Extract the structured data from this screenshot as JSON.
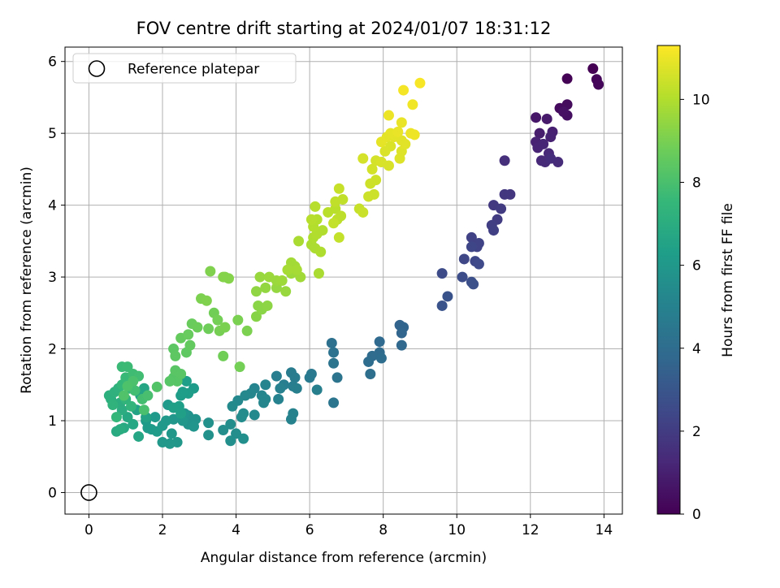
{
  "chart_data": {
    "type": "scatter",
    "title": "FOV centre drift starting at 2024/01/07 18:31:12",
    "xlabel": "Angular distance from reference (arcmin)",
    "ylabel": "Rotation from reference (arcmin)",
    "xlim": [
      -0.65,
      14.5
    ],
    "ylim": [
      -0.3,
      6.2
    ],
    "xticks": [
      0,
      2,
      4,
      6,
      8,
      10,
      12,
      14
    ],
    "yticks": [
      0,
      1,
      2,
      3,
      4,
      5,
      6
    ],
    "grid": true,
    "legend": {
      "position": "top-left",
      "entries": [
        "Reference platepar"
      ]
    },
    "reference_point": {
      "x": 0,
      "y": 0,
      "marker": "open-circle",
      "label": "Reference platepar"
    },
    "colorbar": {
      "label": "Hours from first FF file",
      "colormap": "viridis",
      "range": [
        0,
        11.3
      ],
      "ticks": [
        0,
        2,
        4,
        6,
        8,
        10
      ]
    },
    "color_field": "hours",
    "points": [
      {
        "x": 13.7,
        "y": 5.9,
        "hours": 0.0
      },
      {
        "x": 13.0,
        "y": 5.76,
        "hours": 0.05
      },
      {
        "x": 13.8,
        "y": 5.75,
        "hours": 0.1
      },
      {
        "x": 13.85,
        "y": 5.68,
        "hours": 0.15
      },
      {
        "x": 12.8,
        "y": 5.35,
        "hours": 0.3
      },
      {
        "x": 13.0,
        "y": 5.4,
        "hours": 0.35
      },
      {
        "x": 13.0,
        "y": 5.25,
        "hours": 0.45
      },
      {
        "x": 12.9,
        "y": 5.3,
        "hours": 0.5
      },
      {
        "x": 12.15,
        "y": 5.22,
        "hours": 0.7
      },
      {
        "x": 12.45,
        "y": 5.2,
        "hours": 0.8
      },
      {
        "x": 12.25,
        "y": 5.0,
        "hours": 0.9
      },
      {
        "x": 12.6,
        "y": 5.02,
        "hours": 1.0
      },
      {
        "x": 12.55,
        "y": 4.95,
        "hours": 1.05
      },
      {
        "x": 12.15,
        "y": 4.88,
        "hours": 1.1
      },
      {
        "x": 12.2,
        "y": 4.8,
        "hours": 1.15
      },
      {
        "x": 12.35,
        "y": 4.85,
        "hours": 1.2
      },
      {
        "x": 12.5,
        "y": 4.72,
        "hours": 1.25
      },
      {
        "x": 12.3,
        "y": 4.62,
        "hours": 1.3
      },
      {
        "x": 12.4,
        "y": 4.6,
        "hours": 1.35
      },
      {
        "x": 12.75,
        "y": 4.6,
        "hours": 1.4
      },
      {
        "x": 12.55,
        "y": 4.65,
        "hours": 1.45
      },
      {
        "x": 11.3,
        "y": 4.62,
        "hours": 1.55
      },
      {
        "x": 11.45,
        "y": 4.15,
        "hours": 1.8
      },
      {
        "x": 11.3,
        "y": 4.15,
        "hours": 1.85
      },
      {
        "x": 11.0,
        "y": 4.0,
        "hours": 1.9
      },
      {
        "x": 11.2,
        "y": 3.95,
        "hours": 1.95
      },
      {
        "x": 11.1,
        "y": 3.8,
        "hours": 2.0
      },
      {
        "x": 10.95,
        "y": 3.72,
        "hours": 2.05
      },
      {
        "x": 11.0,
        "y": 3.65,
        "hours": 2.1
      },
      {
        "x": 10.4,
        "y": 3.55,
        "hours": 2.2
      },
      {
        "x": 10.6,
        "y": 3.47,
        "hours": 2.25
      },
      {
        "x": 10.55,
        "y": 3.42,
        "hours": 2.3
      },
      {
        "x": 10.4,
        "y": 3.42,
        "hours": 2.35
      },
      {
        "x": 10.2,
        "y": 3.25,
        "hours": 2.4
      },
      {
        "x": 10.5,
        "y": 3.22,
        "hours": 2.45
      },
      {
        "x": 10.6,
        "y": 3.18,
        "hours": 2.5
      },
      {
        "x": 9.6,
        "y": 3.05,
        "hours": 2.6
      },
      {
        "x": 10.15,
        "y": 3.0,
        "hours": 2.65
      },
      {
        "x": 10.4,
        "y": 2.93,
        "hours": 2.7
      },
      {
        "x": 10.45,
        "y": 2.9,
        "hours": 2.75
      },
      {
        "x": 9.75,
        "y": 2.73,
        "hours": 2.85
      },
      {
        "x": 9.6,
        "y": 2.6,
        "hours": 2.9
      },
      {
        "x": 8.45,
        "y": 2.33,
        "hours": 3.6
      },
      {
        "x": 8.55,
        "y": 2.3,
        "hours": 3.65
      },
      {
        "x": 8.5,
        "y": 2.22,
        "hours": 3.7
      },
      {
        "x": 8.5,
        "y": 2.05,
        "hours": 3.75
      },
      {
        "x": 7.9,
        "y": 2.1,
        "hours": 3.85
      },
      {
        "x": 7.9,
        "y": 1.95,
        "hours": 3.9
      },
      {
        "x": 7.7,
        "y": 1.9,
        "hours": 3.95
      },
      {
        "x": 7.6,
        "y": 1.82,
        "hours": 4.0
      },
      {
        "x": 7.95,
        "y": 1.87,
        "hours": 4.0
      },
      {
        "x": 7.65,
        "y": 1.65,
        "hours": 4.1
      },
      {
        "x": 6.6,
        "y": 2.08,
        "hours": 4.2
      },
      {
        "x": 6.65,
        "y": 1.95,
        "hours": 4.25
      },
      {
        "x": 6.65,
        "y": 1.8,
        "hours": 4.3
      },
      {
        "x": 6.75,
        "y": 1.6,
        "hours": 4.35
      },
      {
        "x": 6.65,
        "y": 1.25,
        "hours": 4.4
      },
      {
        "x": 6.05,
        "y": 1.65,
        "hours": 4.6
      },
      {
        "x": 6.0,
        "y": 1.6,
        "hours": 4.65
      },
      {
        "x": 5.5,
        "y": 1.67,
        "hours": 4.7
      },
      {
        "x": 5.6,
        "y": 1.6,
        "hours": 4.75
      },
      {
        "x": 5.3,
        "y": 1.5,
        "hours": 4.8
      },
      {
        "x": 5.1,
        "y": 1.62,
        "hours": 4.85
      },
      {
        "x": 5.55,
        "y": 1.48,
        "hours": 4.85
      },
      {
        "x": 5.65,
        "y": 1.45,
        "hours": 4.9
      },
      {
        "x": 6.2,
        "y": 1.43,
        "hours": 4.9
      },
      {
        "x": 5.2,
        "y": 1.45,
        "hours": 4.95
      },
      {
        "x": 5.15,
        "y": 1.3,
        "hours": 5.0
      },
      {
        "x": 5.55,
        "y": 1.1,
        "hours": 5.05
      },
      {
        "x": 5.5,
        "y": 1.02,
        "hours": 5.05
      },
      {
        "x": 4.8,
        "y": 1.5,
        "hours": 5.1
      },
      {
        "x": 4.5,
        "y": 1.45,
        "hours": 5.1
      },
      {
        "x": 4.7,
        "y": 1.35,
        "hours": 5.15
      },
      {
        "x": 4.4,
        "y": 1.38,
        "hours": 5.2
      },
      {
        "x": 4.8,
        "y": 1.3,
        "hours": 5.2
      },
      {
        "x": 4.75,
        "y": 1.25,
        "hours": 5.25
      },
      {
        "x": 4.25,
        "y": 1.35,
        "hours": 5.3
      },
      {
        "x": 4.05,
        "y": 1.28,
        "hours": 5.3
      },
      {
        "x": 4.5,
        "y": 1.08,
        "hours": 5.35
      },
      {
        "x": 3.9,
        "y": 1.2,
        "hours": 5.4
      },
      {
        "x": 4.2,
        "y": 1.1,
        "hours": 5.45
      },
      {
        "x": 4.15,
        "y": 1.05,
        "hours": 5.45
      },
      {
        "x": 3.85,
        "y": 0.95,
        "hours": 5.5
      },
      {
        "x": 4.0,
        "y": 0.82,
        "hours": 5.55
      },
      {
        "x": 3.65,
        "y": 0.87,
        "hours": 5.55
      },
      {
        "x": 3.85,
        "y": 0.72,
        "hours": 5.6
      },
      {
        "x": 4.2,
        "y": 0.75,
        "hours": 5.6
      },
      {
        "x": 3.25,
        "y": 0.97,
        "hours": 5.65
      },
      {
        "x": 3.25,
        "y": 0.8,
        "hours": 5.7
      },
      {
        "x": 2.7,
        "y": 1.07,
        "hours": 5.75
      },
      {
        "x": 2.9,
        "y": 1.02,
        "hours": 5.8
      },
      {
        "x": 2.7,
        "y": 0.95,
        "hours": 5.8
      },
      {
        "x": 2.85,
        "y": 0.92,
        "hours": 5.85
      },
      {
        "x": 2.6,
        "y": 1.1,
        "hours": 5.85
      },
      {
        "x": 2.55,
        "y": 1.0,
        "hours": 5.9
      },
      {
        "x": 2.3,
        "y": 1.02,
        "hours": 5.9
      },
      {
        "x": 2.25,
        "y": 0.82,
        "hours": 5.95
      },
      {
        "x": 2.4,
        "y": 0.7,
        "hours": 5.95
      },
      {
        "x": 2.2,
        "y": 0.68,
        "hours": 6.0
      },
      {
        "x": 2.0,
        "y": 0.7,
        "hours": 6.0
      },
      {
        "x": 2.0,
        "y": 0.93,
        "hours": 6.05
      },
      {
        "x": 2.1,
        "y": 1.0,
        "hours": 6.05
      },
      {
        "x": 2.15,
        "y": 1.22,
        "hours": 6.1
      },
      {
        "x": 1.8,
        "y": 1.05,
        "hours": 6.1
      },
      {
        "x": 1.7,
        "y": 0.88,
        "hours": 6.15
      },
      {
        "x": 1.85,
        "y": 0.85,
        "hours": 6.15
      },
      {
        "x": 1.6,
        "y": 0.9,
        "hours": 6.2
      },
      {
        "x": 1.55,
        "y": 1.0,
        "hours": 6.2
      },
      {
        "x": 2.85,
        "y": 1.45,
        "hours": 6.2
      },
      {
        "x": 2.7,
        "y": 1.38,
        "hours": 6.25
      },
      {
        "x": 2.5,
        "y": 1.35,
        "hours": 6.25
      },
      {
        "x": 2.55,
        "y": 1.4,
        "hours": 6.3
      },
      {
        "x": 2.65,
        "y": 1.55,
        "hours": 6.35
      },
      {
        "x": 2.45,
        "y": 1.2,
        "hours": 6.35
      },
      {
        "x": 2.3,
        "y": 1.18,
        "hours": 6.4
      },
      {
        "x": 2.5,
        "y": 1.1,
        "hours": 6.4
      },
      {
        "x": 1.55,
        "y": 1.05,
        "hours": 6.5
      },
      {
        "x": 1.3,
        "y": 1.15,
        "hours": 6.55
      },
      {
        "x": 1.4,
        "y": 1.35,
        "hours": 6.6
      },
      {
        "x": 1.5,
        "y": 1.45,
        "hours": 6.65
      },
      {
        "x": 1.35,
        "y": 0.78,
        "hours": 6.7
      },
      {
        "x": 1.2,
        "y": 0.95,
        "hours": 6.75
      },
      {
        "x": 1.05,
        "y": 1.05,
        "hours": 6.8
      },
      {
        "x": 0.95,
        "y": 0.9,
        "hours": 6.85
      },
      {
        "x": 0.75,
        "y": 0.85,
        "hours": 6.9
      },
      {
        "x": 0.85,
        "y": 0.88,
        "hours": 6.95
      },
      {
        "x": 0.9,
        "y": 1.15,
        "hours": 7.0
      },
      {
        "x": 0.85,
        "y": 1.25,
        "hours": 7.05
      },
      {
        "x": 0.6,
        "y": 1.3,
        "hours": 7.1
      },
      {
        "x": 0.55,
        "y": 1.35,
        "hours": 7.15
      },
      {
        "x": 0.7,
        "y": 1.4,
        "hours": 7.2
      },
      {
        "x": 0.8,
        "y": 1.45,
        "hours": 7.25
      },
      {
        "x": 0.65,
        "y": 1.22,
        "hours": 7.3
      },
      {
        "x": 1.0,
        "y": 1.3,
        "hours": 7.35
      },
      {
        "x": 1.15,
        "y": 1.2,
        "hours": 7.4
      },
      {
        "x": 0.75,
        "y": 1.05,
        "hours": 7.45
      },
      {
        "x": 0.9,
        "y": 1.5,
        "hours": 7.5
      },
      {
        "x": 1.1,
        "y": 1.45,
        "hours": 7.55
      },
      {
        "x": 1.0,
        "y": 1.6,
        "hours": 7.6
      },
      {
        "x": 0.9,
        "y": 1.75,
        "hours": 7.65
      },
      {
        "x": 1.05,
        "y": 1.75,
        "hours": 7.7
      },
      {
        "x": 1.2,
        "y": 1.65,
        "hours": 7.75
      },
      {
        "x": 1.35,
        "y": 1.62,
        "hours": 7.8
      },
      {
        "x": 1.25,
        "y": 1.42,
        "hours": 7.85
      },
      {
        "x": 1.45,
        "y": 1.3,
        "hours": 7.9
      },
      {
        "x": 1.6,
        "y": 1.35,
        "hours": 7.95
      },
      {
        "x": 1.5,
        "y": 1.15,
        "hours": 8.0
      },
      {
        "x": 1.2,
        "y": 1.55,
        "hours": 8.05
      },
      {
        "x": 1.05,
        "y": 1.48,
        "hours": 8.1
      },
      {
        "x": 0.95,
        "y": 1.35,
        "hours": 8.15
      },
      {
        "x": 1.85,
        "y": 1.47,
        "hours": 8.2
      },
      {
        "x": 2.3,
        "y": 1.6,
        "hours": 8.25
      },
      {
        "x": 2.4,
        "y": 1.55,
        "hours": 8.3
      },
      {
        "x": 2.2,
        "y": 1.55,
        "hours": 8.3
      },
      {
        "x": 2.35,
        "y": 1.7,
        "hours": 8.35
      },
      {
        "x": 2.5,
        "y": 1.65,
        "hours": 8.35
      },
      {
        "x": 2.3,
        "y": 2.0,
        "hours": 8.4
      },
      {
        "x": 2.35,
        "y": 1.9,
        "hours": 8.45
      },
      {
        "x": 2.65,
        "y": 1.95,
        "hours": 8.5
      },
      {
        "x": 2.75,
        "y": 2.05,
        "hours": 8.55
      },
      {
        "x": 2.5,
        "y": 2.15,
        "hours": 8.6
      },
      {
        "x": 2.7,
        "y": 2.2,
        "hours": 8.65
      },
      {
        "x": 2.8,
        "y": 2.35,
        "hours": 8.7
      },
      {
        "x": 2.95,
        "y": 2.3,
        "hours": 8.75
      },
      {
        "x": 3.25,
        "y": 2.28,
        "hours": 8.8
      },
      {
        "x": 3.4,
        "y": 2.5,
        "hours": 8.85
      },
      {
        "x": 3.5,
        "y": 2.4,
        "hours": 8.9
      },
      {
        "x": 3.55,
        "y": 2.25,
        "hours": 8.95
      },
      {
        "x": 3.7,
        "y": 2.3,
        "hours": 9.0
      },
      {
        "x": 4.05,
        "y": 2.4,
        "hours": 9.0
      },
      {
        "x": 4.3,
        "y": 2.25,
        "hours": 9.05
      },
      {
        "x": 4.1,
        "y": 1.75,
        "hours": 8.9
      },
      {
        "x": 3.65,
        "y": 1.9,
        "hours": 8.85
      },
      {
        "x": 3.05,
        "y": 2.7,
        "hours": 9.05
      },
      {
        "x": 3.2,
        "y": 2.67,
        "hours": 9.1
      },
      {
        "x": 3.3,
        "y": 3.08,
        "hours": 9.1
      },
      {
        "x": 3.7,
        "y": 3.0,
        "hours": 9.15
      },
      {
        "x": 3.8,
        "y": 2.98,
        "hours": 9.2
      },
      {
        "x": 3.65,
        "y": 3.0,
        "hours": 9.2
      },
      {
        "x": 4.55,
        "y": 2.45,
        "hours": 9.25
      },
      {
        "x": 4.6,
        "y": 2.6,
        "hours": 9.3
      },
      {
        "x": 4.7,
        "y": 2.55,
        "hours": 9.3
      },
      {
        "x": 4.85,
        "y": 2.6,
        "hours": 9.35
      },
      {
        "x": 4.55,
        "y": 2.8,
        "hours": 9.4
      },
      {
        "x": 4.8,
        "y": 2.85,
        "hours": 9.45
      },
      {
        "x": 5.1,
        "y": 2.85,
        "hours": 9.5
      },
      {
        "x": 5.35,
        "y": 2.8,
        "hours": 9.55
      },
      {
        "x": 4.65,
        "y": 3.0,
        "hours": 9.55
      },
      {
        "x": 4.9,
        "y": 3.0,
        "hours": 9.6
      },
      {
        "x": 5.1,
        "y": 2.95,
        "hours": 9.6
      },
      {
        "x": 5.25,
        "y": 2.95,
        "hours": 9.65
      },
      {
        "x": 5.5,
        "y": 3.05,
        "hours": 9.65
      },
      {
        "x": 5.75,
        "y": 3.0,
        "hours": 9.7
      },
      {
        "x": 5.5,
        "y": 3.2,
        "hours": 9.75
      },
      {
        "x": 5.6,
        "y": 3.15,
        "hours": 9.75
      },
      {
        "x": 5.65,
        "y": 3.1,
        "hours": 9.8
      },
      {
        "x": 5.4,
        "y": 3.1,
        "hours": 9.8
      },
      {
        "x": 6.25,
        "y": 3.05,
        "hours": 9.85
      },
      {
        "x": 5.7,
        "y": 3.5,
        "hours": 9.85
      },
      {
        "x": 6.05,
        "y": 3.45,
        "hours": 9.9
      },
      {
        "x": 6.15,
        "y": 3.4,
        "hours": 9.9
      },
      {
        "x": 6.3,
        "y": 3.35,
        "hours": 9.95
      },
      {
        "x": 6.1,
        "y": 3.55,
        "hours": 9.95
      },
      {
        "x": 6.2,
        "y": 3.6,
        "hours": 10.0
      },
      {
        "x": 6.35,
        "y": 3.65,
        "hours": 10.0
      },
      {
        "x": 6.1,
        "y": 3.7,
        "hours": 10.05
      },
      {
        "x": 6.2,
        "y": 3.8,
        "hours": 10.05
      },
      {
        "x": 6.05,
        "y": 3.8,
        "hours": 10.1
      },
      {
        "x": 6.15,
        "y": 3.98,
        "hours": 10.1
      },
      {
        "x": 6.5,
        "y": 3.9,
        "hours": 10.15
      },
      {
        "x": 6.7,
        "y": 3.95,
        "hours": 10.15
      },
      {
        "x": 6.75,
        "y": 3.8,
        "hours": 10.2
      },
      {
        "x": 6.85,
        "y": 3.85,
        "hours": 10.2
      },
      {
        "x": 6.7,
        "y": 4.05,
        "hours": 10.25
      },
      {
        "x": 6.9,
        "y": 4.08,
        "hours": 10.25
      },
      {
        "x": 6.8,
        "y": 3.55,
        "hours": 10.3
      },
      {
        "x": 6.65,
        "y": 3.75,
        "hours": 10.3
      },
      {
        "x": 6.8,
        "y": 4.23,
        "hours": 10.35
      },
      {
        "x": 7.35,
        "y": 3.95,
        "hours": 10.35
      },
      {
        "x": 7.45,
        "y": 3.9,
        "hours": 10.4
      },
      {
        "x": 7.6,
        "y": 4.12,
        "hours": 10.45
      },
      {
        "x": 7.75,
        "y": 4.15,
        "hours": 10.45
      },
      {
        "x": 7.65,
        "y": 4.3,
        "hours": 10.5
      },
      {
        "x": 7.8,
        "y": 4.35,
        "hours": 10.5
      },
      {
        "x": 7.7,
        "y": 4.5,
        "hours": 10.55
      },
      {
        "x": 7.45,
        "y": 4.65,
        "hours": 10.6
      },
      {
        "x": 7.8,
        "y": 4.62,
        "hours": 10.6
      },
      {
        "x": 7.95,
        "y": 4.6,
        "hours": 10.65
      },
      {
        "x": 8.15,
        "y": 4.55,
        "hours": 10.65
      },
      {
        "x": 8.05,
        "y": 4.75,
        "hours": 10.7
      },
      {
        "x": 8.2,
        "y": 4.82,
        "hours": 10.7
      },
      {
        "x": 8.45,
        "y": 4.65,
        "hours": 10.75
      },
      {
        "x": 8.5,
        "y": 4.75,
        "hours": 10.75
      },
      {
        "x": 8.6,
        "y": 4.85,
        "hours": 10.8
      },
      {
        "x": 8.5,
        "y": 4.9,
        "hours": 10.8
      },
      {
        "x": 8.3,
        "y": 4.95,
        "hours": 10.85
      },
      {
        "x": 8.1,
        "y": 4.95,
        "hours": 10.85
      },
      {
        "x": 7.95,
        "y": 4.88,
        "hours": 10.9
      },
      {
        "x": 8.2,
        "y": 5.0,
        "hours": 10.9
      },
      {
        "x": 8.4,
        "y": 5.02,
        "hours": 10.95
      },
      {
        "x": 8.5,
        "y": 5.15,
        "hours": 10.95
      },
      {
        "x": 8.15,
        "y": 5.25,
        "hours": 11.0
      },
      {
        "x": 8.75,
        "y": 5.0,
        "hours": 11.0
      },
      {
        "x": 8.85,
        "y": 4.98,
        "hours": 11.05
      },
      {
        "x": 8.8,
        "y": 5.4,
        "hours": 11.1
      },
      {
        "x": 8.55,
        "y": 5.6,
        "hours": 11.15
      },
      {
        "x": 9.0,
        "y": 5.7,
        "hours": 11.2
      }
    ]
  }
}
